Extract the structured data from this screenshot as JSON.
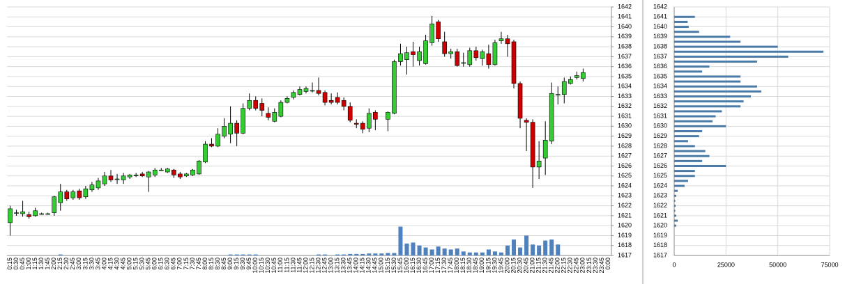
{
  "chart_data": [
    {
      "type": "candlestick",
      "x": [
        "0:15",
        "0:30",
        "0:45",
        "1:00",
        "1:15",
        "1:30",
        "1:45",
        "2:00",
        "2:15",
        "2:30",
        "2:45",
        "3:00",
        "3:15",
        "3:30",
        "3:45",
        "4:00",
        "4:15",
        "4:30",
        "4:45",
        "5:00",
        "5:15",
        "5:30",
        "5:45",
        "6:00",
        "6:15",
        "6:30",
        "6:45",
        "7:00",
        "7:15",
        "7:30",
        "7:45",
        "8:00",
        "8:15",
        "8:30",
        "8:45",
        "9:00",
        "9:15",
        "9:30",
        "9:45",
        "10:00",
        "10:15",
        "10:30",
        "10:45",
        "11:00",
        "11:15",
        "11:30",
        "11:45",
        "12:00",
        "12:15",
        "12:30",
        "12:45",
        "13:00",
        "13:15",
        "13:30",
        "13:45",
        "14:00",
        "14:15",
        "14:30",
        "14:45",
        "15:00",
        "15:15",
        "15:30",
        "15:45",
        "16:00",
        "16:15",
        "16:30",
        "16:45",
        "17:00",
        "17:15",
        "17:30",
        "17:45",
        "18:00",
        "18:15",
        "18:30",
        "18:45",
        "19:00",
        "19:15",
        "19:30",
        "19:45",
        "20:00",
        "20:15",
        "20:30",
        "20:45",
        "21:00",
        "21:15",
        "21:30",
        "21:45",
        "22:00",
        "22:15",
        "22:30",
        "22:45",
        "23:00",
        "23:15",
        "23:30",
        "23:45",
        "0:00"
      ],
      "open": [
        1620.3,
        1621.3,
        1621.2,
        1621.1,
        1621.0,
        1621.2,
        1621.2,
        1621.3,
        1622.3,
        1623.4,
        1622.8,
        1623.5,
        1622.9,
        1623.6,
        1623.8,
        1624.2,
        1625.0,
        1624.7,
        1624.6,
        1624.9,
        1625.1,
        1625.2,
        1624.9,
        1625.1,
        1625.6,
        1625.4,
        1625.6,
        1625.2,
        1625.0,
        1625.1,
        1625.2,
        1626.4,
        1628.2,
        1628.0,
        1629.0,
        1629.2,
        1630.3,
        1629.3,
        1631.8,
        1632.6,
        1632.3,
        1631.3,
        1630.5,
        1631.0,
        1632.4,
        1632.9,
        1633.2,
        1633.5,
        1633.6,
        1633.6,
        1633.4,
        1632.6,
        1632.9,
        1632.6,
        1632.0,
        1630.3,
        1630.3,
        1629.8,
        1631.4,
        null,
        1630.7,
        1631.3,
        1636.5,
        1636.7,
        1637.5,
        1636.6,
        1636.3,
        1638.4,
        1640.5,
        1638.5,
        1637.3,
        1637.5,
        1636.4,
        1636.2,
        1637.6,
        1636.8,
        1637.3,
        1636.2,
        1638.6,
        1638.8,
        1638.5,
        1634.3,
        1630.6,
        1630.4,
        1625.9,
        1626.8,
        1628.5,
        1633.2,
        1633.2,
        1634.3,
        1634.9,
        1634.8,
        null,
        null,
        null,
        null
      ],
      "high": [
        1622.0,
        1621.6,
        1622.5,
        1621.4,
        1621.8,
        1621.3,
        1621.3,
        1623.0,
        1624.2,
        1623.6,
        1623.6,
        1623.7,
        1624.0,
        1624.4,
        1624.8,
        1625.4,
        1625.6,
        1625.2,
        1625.3,
        1625.2,
        1625.3,
        1625.4,
        1625.5,
        1625.8,
        1625.8,
        1625.8,
        1625.7,
        1625.4,
        1625.3,
        1625.7,
        1626.6,
        1628.5,
        1628.8,
        1629.8,
        1630.8,
        1632.0,
        1630.6,
        1632.3,
        1633.3,
        1633.0,
        1632.8,
        1631.9,
        1631.8,
        1632.6,
        1633.0,
        1633.6,
        1634.0,
        1634.0,
        1634.4,
        1634.9,
        1633.6,
        1633.3,
        1633.4,
        1632.9,
        1632.4,
        1630.7,
        1630.5,
        1631.8,
        1631.6,
        null,
        1631.5,
        1636.7,
        1638.3,
        1638.0,
        1638.5,
        1638.0,
        1639.2,
        1641.1,
        1640.7,
        1639.5,
        1637.8,
        1637.8,
        1637.4,
        1637.9,
        1638.0,
        1637.7,
        1638.2,
        1638.7,
        1639.5,
        1639.2,
        1638.7,
        1634.5,
        1630.8,
        1630.7,
        1628.5,
        1630.5,
        1634.4,
        1634.0,
        1634.9,
        1635.0,
        1635.5,
        1635.8,
        null,
        null,
        null,
        null
      ],
      "low": [
        1619.0,
        1621.0,
        1620.9,
        1620.7,
        1620.9,
        1621.1,
        1621.1,
        1621.0,
        1621.5,
        1622.5,
        1622.6,
        1622.6,
        1622.7,
        1623.4,
        1623.6,
        1624.0,
        1624.4,
        1624.2,
        1624.2,
        1624.7,
        1624.9,
        1624.9,
        1623.4,
        1624.9,
        1625.5,
        1625.3,
        1624.8,
        1624.7,
        1624.9,
        1625.0,
        1625.1,
        1626.3,
        1627.9,
        1627.9,
        1628.8,
        1628.3,
        1628.0,
        1629.2,
        1631.6,
        1631.6,
        1631.0,
        1630.6,
        1630.4,
        1630.9,
        1632.3,
        1632.7,
        1633.1,
        1633.3,
        1633.4,
        1633.1,
        1632.1,
        1632.2,
        1632.2,
        1631.6,
        1630.4,
        1629.8,
        1629.3,
        1629.4,
        1629.6,
        null,
        1629.5,
        1631.2,
        1636.1,
        1635.2,
        1636.0,
        1636.1,
        1636.2,
        1638.1,
        1638.5,
        1637.0,
        1636.8,
        1636.0,
        1636.0,
        1636.0,
        1636.6,
        1636.1,
        1635.8,
        1636.1,
        1638.3,
        1637.0,
        1633.8,
        1629.8,
        1627.5,
        1623.8,
        1624.7,
        1625.1,
        1628.2,
        1632.2,
        1632.3,
        1634.2,
        1634.7,
        1634.5,
        null,
        null,
        null,
        null
      ],
      "close": [
        1621.7,
        1621.3,
        1621.4,
        1620.9,
        1621.5,
        1621.2,
        1621.2,
        1622.9,
        1623.4,
        1622.7,
        1623.4,
        1622.8,
        1623.7,
        1624.1,
        1624.5,
        1625.0,
        1624.6,
        1624.7,
        1625.0,
        1625.1,
        1625.1,
        1625.0,
        1625.4,
        1625.6,
        1625.6,
        1625.7,
        1625.1,
        1624.9,
        1625.2,
        1625.6,
        1626.5,
        1628.2,
        1628.0,
        1629.2,
        1630.0,
        1630.3,
        1629.3,
        1631.8,
        1632.6,
        1631.8,
        1631.6,
        1630.9,
        1631.4,
        1632.4,
        1632.8,
        1633.4,
        1633.7,
        1633.8,
        1633.6,
        1633.3,
        1632.4,
        1632.4,
        1632.4,
        1632.0,
        1630.6,
        1630.2,
        1629.7,
        1631.3,
        1630.7,
        null,
        1631.4,
        1636.5,
        1637.3,
        1637.4,
        1637.2,
        1637.5,
        1638.6,
        1640.3,
        1638.8,
        1637.3,
        1637.5,
        1636.1,
        1636.4,
        1637.6,
        1636.9,
        1637.5,
        1636.2,
        1638.4,
        1638.8,
        1638.3,
        1634.3,
        1630.8,
        1630.4,
        1625.9,
        1626.5,
        1628.6,
        1633.3,
        1633.2,
        1634.5,
        1634.7,
        1635.1,
        1635.4,
        null,
        null,
        null,
        null
      ],
      "volume": [
        null,
        null,
        null,
        null,
        null,
        null,
        null,
        null,
        0.1,
        null,
        null,
        null,
        null,
        null,
        null,
        null,
        null,
        null,
        null,
        null,
        null,
        null,
        null,
        null,
        null,
        null,
        null,
        null,
        null,
        null,
        null,
        null,
        null,
        null,
        null,
        0.1,
        0.1,
        0.1,
        0.1,
        0.1,
        null,
        null,
        null,
        null,
        null,
        null,
        null,
        null,
        null,
        0.1,
        0.1,
        null,
        0.1,
        0.1,
        0.15,
        0.15,
        0.15,
        0.2,
        0.2,
        0.2,
        0.25,
        0.25,
        2.9,
        1.2,
        1.3,
        1.0,
        0.8,
        0.6,
        0.9,
        0.7,
        0.6,
        0.7,
        0.4,
        0.3,
        0.3,
        0.3,
        0.6,
        0.4,
        0.3,
        1.0,
        1.6,
        0.8,
        2.0,
        1.1,
        1.0,
        1.5,
        1.6,
        1.1,
        null,
        null,
        null,
        null,
        null,
        null,
        null,
        null
      ],
      "ylim": [
        1617,
        1642
      ],
      "yticks": [
        1617,
        1618,
        1619,
        1620,
        1621,
        1622,
        1623,
        1624,
        1625,
        1626,
        1627,
        1628,
        1629,
        1630,
        1631,
        1632,
        1633,
        1634,
        1635,
        1636,
        1637,
        1638,
        1639,
        1640,
        1641,
        1642
      ],
      "grid": true,
      "up_color": "#33cc33",
      "down_color": "#cc0000",
      "volume_color": "#4f81bd"
    },
    {
      "type": "barh",
      "y": [
        1620,
        1620.5,
        1621,
        1621.5,
        1622,
        1622.5,
        1623,
        1623.5,
        1624,
        1624.5,
        1625,
        1625.5,
        1626,
        1626.5,
        1627,
        1627.5,
        1628,
        1628.5,
        1629,
        1629.5,
        1630,
        1630.5,
        1631,
        1631.5,
        1632,
        1632.5,
        1633,
        1633.5,
        1634,
        1634.5,
        1635,
        1635.5,
        1636,
        1636.5,
        1637,
        1637.5,
        1638,
        1638.5,
        1639,
        1639.5,
        1640,
        1640.5,
        1641
      ],
      "values": [
        1000,
        1700,
        1000,
        500,
        700,
        500,
        1000,
        1700,
        5000,
        6700,
        10000,
        10000,
        25000,
        13500,
        17000,
        15000,
        10000,
        6700,
        12000,
        13500,
        25000,
        18500,
        20000,
        23000,
        32000,
        33500,
        37000,
        42000,
        40000,
        32000,
        32000,
        13500,
        17000,
        40000,
        55000,
        72000,
        50000,
        32000,
        27000,
        12000,
        7000,
        6500,
        10000
      ],
      "xlim": [
        0,
        75000
      ],
      "xticks": [
        0,
        25000,
        50000,
        75000
      ],
      "ylim": [
        1617,
        1642
      ],
      "yticks": [
        1617,
        1618,
        1619,
        1620,
        1621,
        1622,
        1623,
        1624,
        1625,
        1626,
        1627,
        1628,
        1629,
        1630,
        1631,
        1632,
        1633,
        1634,
        1635,
        1636,
        1637,
        1638,
        1639,
        1640,
        1641,
        1642
      ],
      "grid": true,
      "color": "#4a7ba7"
    }
  ]
}
